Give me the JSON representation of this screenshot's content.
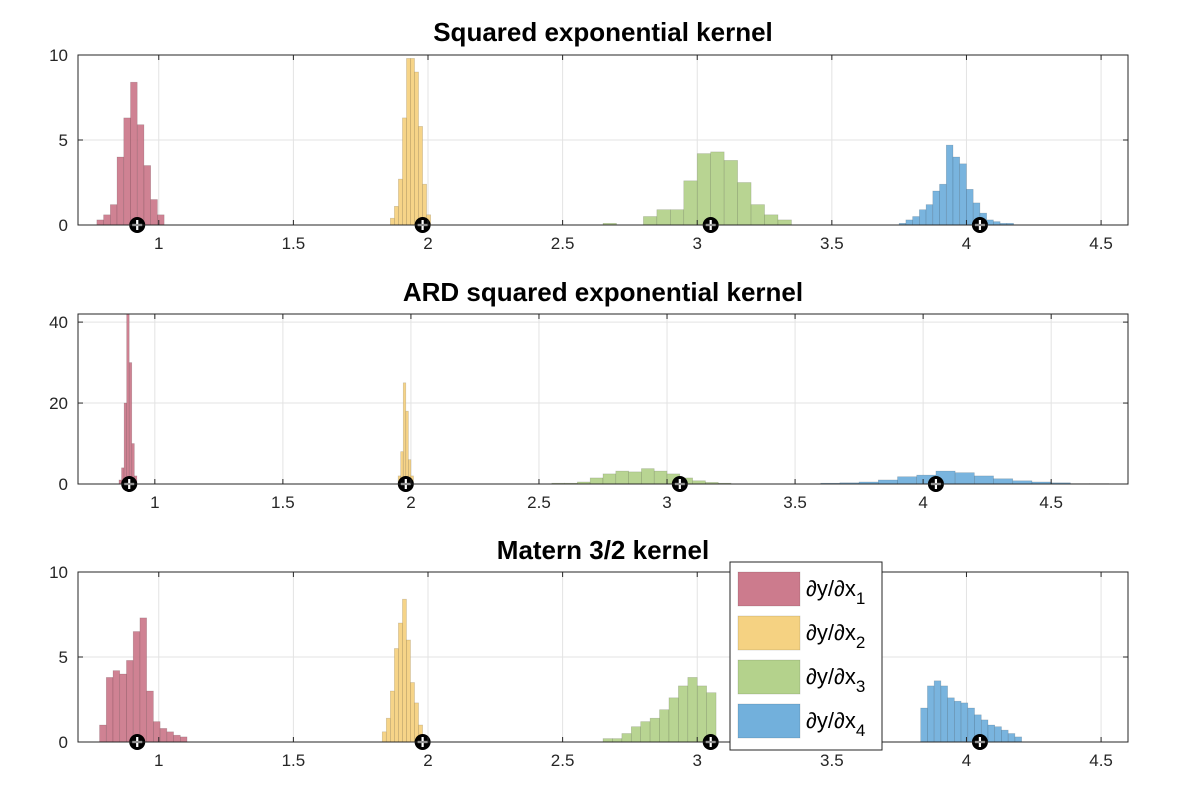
{
  "chart_data": [
    {
      "type": "histogram",
      "title": "Squared exponential kernel",
      "xlim": [
        0.7,
        4.6
      ],
      "ylim": [
        0,
        10
      ],
      "xticks": [
        1,
        1.5,
        2,
        2.5,
        3,
        3.5,
        4,
        4.5
      ],
      "xtick_labels": [
        "1",
        "1.5",
        "2",
        "2.5",
        "3",
        "3.5",
        "4",
        "4.5"
      ],
      "yticks": [
        0,
        5,
        10
      ],
      "ytick_labels": [
        "0",
        "5",
        "10"
      ],
      "grid": true,
      "series": [
        {
          "color": "#cc7b8d",
          "bin_start": 0.77,
          "bin_width": 0.025,
          "counts": [
            0.3,
            0.6,
            1.2,
            4.0,
            6.3,
            8.4,
            5.9,
            3.5,
            1.5,
            0.6
          ],
          "marker_x": 0.92
        },
        {
          "color": "#f5d282",
          "bin_start": 1.86,
          "bin_width": 0.015,
          "counts": [
            0.4,
            1.1,
            2.7,
            6.3,
            9.8,
            9.8,
            9.0,
            5.8,
            2.4,
            0.6
          ],
          "marker_x": 1.98
        },
        {
          "color": "#b4d28c",
          "bin_start": 2.65,
          "bin_width": 0.05,
          "counts": [
            0.1,
            0,
            0,
            0.5,
            0.9,
            0.9,
            2.6,
            4.2,
            4.3,
            3.8,
            2.5,
            1.2,
            0.6,
            0.3
          ],
          "marker_x": 3.05
        },
        {
          "color": "#72b0dc",
          "bin_start": 3.75,
          "bin_width": 0.025,
          "counts": [
            0.1,
            0.3,
            0.5,
            0.9,
            1.2,
            2.0,
            2.4,
            4.7,
            4.0,
            3.6,
            2.1,
            1.3,
            0.7,
            0.3,
            0.2,
            0.1,
            0.1
          ],
          "marker_x": 4.05
        }
      ]
    },
    {
      "type": "histogram",
      "title": "ARD squared exponential kernel",
      "xlim": [
        0.7,
        4.8
      ],
      "ylim": [
        0,
        42
      ],
      "xticks": [
        1,
        1.5,
        2,
        2.5,
        3,
        3.5,
        4,
        4.5
      ],
      "xtick_labels": [
        "1",
        "1.5",
        "2",
        "2.5",
        "3",
        "3.5",
        "4",
        "4.5"
      ],
      "yticks": [
        0,
        20,
        40
      ],
      "ytick_labels": [
        "0",
        "20",
        "40"
      ],
      "grid": true,
      "series": [
        {
          "color": "#cc7b8d",
          "bin_start": 0.86,
          "bin_width": 0.01,
          "counts": [
            1,
            4,
            20,
            42,
            30,
            10,
            2
          ],
          "marker_x": 0.9
        },
        {
          "color": "#f5d282",
          "bin_start": 1.95,
          "bin_width": 0.01,
          "counts": [
            2,
            8,
            25,
            18,
            6,
            2
          ],
          "marker_x": 1.98
        },
        {
          "color": "#b4d28c",
          "bin_start": 2.55,
          "bin_width": 0.05,
          "counts": [
            0.2,
            0.2,
            0.5,
            1.5,
            2.5,
            3.2,
            3.0,
            3.8,
            3.2,
            2.5,
            1.5,
            0.8,
            0.4,
            0.2
          ],
          "marker_x": 3.05
        },
        {
          "color": "#72b0dc",
          "bin_start": 3.6,
          "bin_width": 0.075,
          "counts": [
            0.2,
            0.3,
            0.5,
            1.0,
            1.8,
            2.2,
            3.2,
            2.8,
            2.0,
            1.3,
            0.8,
            0.5,
            0.3,
            0.1,
            0.1
          ],
          "marker_x": 4.05
        }
      ]
    },
    {
      "type": "histogram",
      "title": "Matern 3/2 kernel",
      "xlim": [
        0.7,
        4.6
      ],
      "ylim": [
        0,
        10
      ],
      "xticks": [
        1,
        1.5,
        2,
        2.5,
        3,
        3.5,
        4,
        4.5
      ],
      "xtick_labels": [
        "1",
        "1.5",
        "2",
        "2.5",
        "3",
        "3.5",
        "4",
        "4.5"
      ],
      "yticks": [
        0,
        5,
        10
      ],
      "ytick_labels": [
        "0",
        "5",
        "10"
      ],
      "grid": true,
      "legend": {
        "placement": "right-center",
        "entries": [
          {
            "color": "#cc7b8d",
            "main": "∂y/∂x",
            "sub": "1"
          },
          {
            "color": "#f5d282",
            "main": "∂y/∂x",
            "sub": "2"
          },
          {
            "color": "#b4d28c",
            "main": "∂y/∂x",
            "sub": "3"
          },
          {
            "color": "#72b0dc",
            "main": "∂y/∂x",
            "sub": "4"
          }
        ]
      },
      "series": [
        {
          "color": "#cc7b8d",
          "bin_start": 0.78,
          "bin_width": 0.025,
          "counts": [
            1.0,
            3.8,
            4.2,
            4.0,
            4.8,
            6.5,
            7.3,
            3.0,
            1.2,
            0.8,
            0.6,
            0.4,
            0.3
          ],
          "marker_x": 0.92
        },
        {
          "color": "#f5d282",
          "bin_start": 1.83,
          "bin_width": 0.015,
          "counts": [
            0.6,
            1.4,
            3.0,
            5.5,
            7.0,
            8.4,
            6.0,
            3.5,
            2.3,
            1.0,
            0.4
          ],
          "marker_x": 1.98
        },
        {
          "color": "#b4d28c",
          "bin_start": 2.65,
          "bin_width": 0.035,
          "counts": [
            0.2,
            0.2,
            0.5,
            0.9,
            1.2,
            1.4,
            1.9,
            2.6,
            3.3,
            3.8,
            3.3,
            2.9
          ],
          "marker_x": 3.05
        },
        {
          "color": "#72b0dc",
          "bin_start": 3.83,
          "bin_width": 0.025,
          "counts": [
            2.0,
            3.3,
            3.6,
            3.3,
            2.6,
            2.4,
            2.3,
            2.0,
            1.6,
            1.3,
            1.0,
            0.9,
            0.7,
            0.5,
            0.3
          ],
          "marker_x": 4.05
        }
      ]
    }
  ]
}
